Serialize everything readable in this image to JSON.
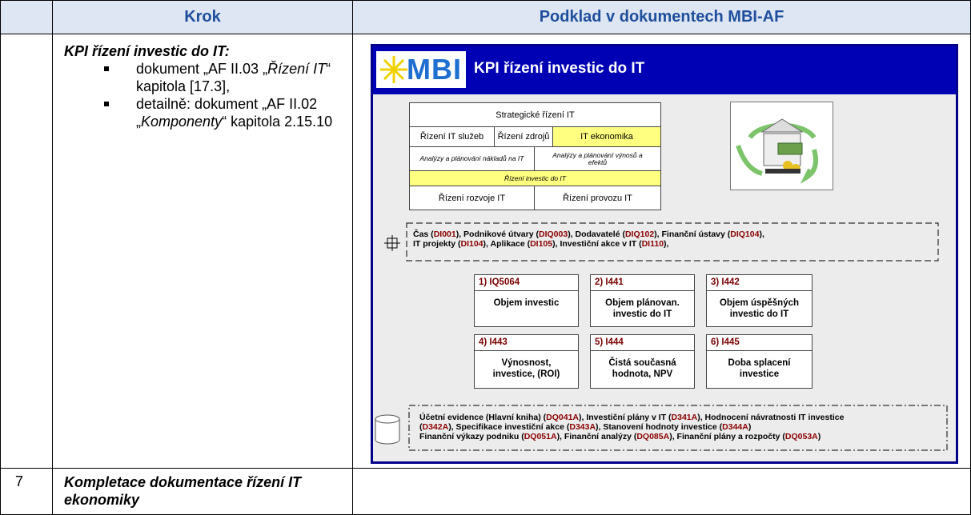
{
  "header": {
    "col_step": "Krok",
    "col_source": "Podklad v dokumentech MBI-AF"
  },
  "rows": [
    {
      "number": null,
      "step": {
        "title": "KPI řízení investic do IT:",
        "bullets": [
          [
            "dokument „AF II.03 „",
            "Řízení IT",
            "“ kapitola [17.3],"
          ],
          [
            "detailně: dokument „AF II.02 „",
            "Komponenty",
            "“ kapitola 2.15.10"
          ]
        ]
      },
      "diagram": {
        "logo": "MBI",
        "title": "KPI řízení investic do IT",
        "org": {
          "top": "Strategické řízení IT",
          "services": "Řízení IT služeb",
          "resources": "Řízení zdrojů",
          "economics": "IT ekonomika",
          "cost_analysis": "Analýzy a plánování nákladů na IT",
          "revenue_analysis": "Analýzy a plánování výnosů a efektů",
          "investment": "Řízení investic do IT",
          "development": "Řízení rozvoje IT",
          "operations": "Řízení provozu IT"
        },
        "dimensions": [
          [
            "Čas (",
            "DI001",
            "), Podnikové útvary (",
            "DIQ003",
            "), Dodavatelé (",
            "DIQ102",
            "), Finanční ústavy (",
            "DIQ104",
            "),"
          ],
          [
            "IT projekty (",
            "DI104",
            "), Aplikace (",
            "DI105",
            "), Investiční akce v IT (",
            "DI110",
            "),"
          ]
        ],
        "kpis": [
          {
            "id": "1) IQ5064",
            "label": "Objem investic"
          },
          {
            "id": "2) I441",
            "label": "Objem plánovan. investic do IT"
          },
          {
            "id": "3) I442",
            "label": "Objem úspěšných investic do IT"
          },
          {
            "id": "4) I443",
            "label": "Výnosnost, investice, (ROI)"
          },
          {
            "id": "5) I444",
            "label": "Čistá současná hodnota, NPV"
          },
          {
            "id": "6) I445",
            "label": "Doba splacení investice"
          }
        ],
        "sources": [
          [
            "Účetní evidence (Hlavní kniha) (",
            "DQ041A",
            "), Investiční plány v IT (",
            "D341A",
            "),  Hodnocení návratnosti IT investice"
          ],
          [
            "(",
            "D342A",
            "),  Specifikace investiční akce (",
            "D343A",
            "),  Stanovení hodnoty investice (",
            "D344A",
            ")"
          ],
          [
            "Finanční výkazy podniku (",
            "DQ051A",
            "), Finanční analýzy (",
            "DQ085A",
            "),   Finanční plány a rozpočty (",
            "DQ053A",
            ")"
          ]
        ]
      }
    },
    {
      "number": "7",
      "step": {
        "title": "Kompletace dokumentace řízení IT ekonomiky"
      }
    }
  ]
}
